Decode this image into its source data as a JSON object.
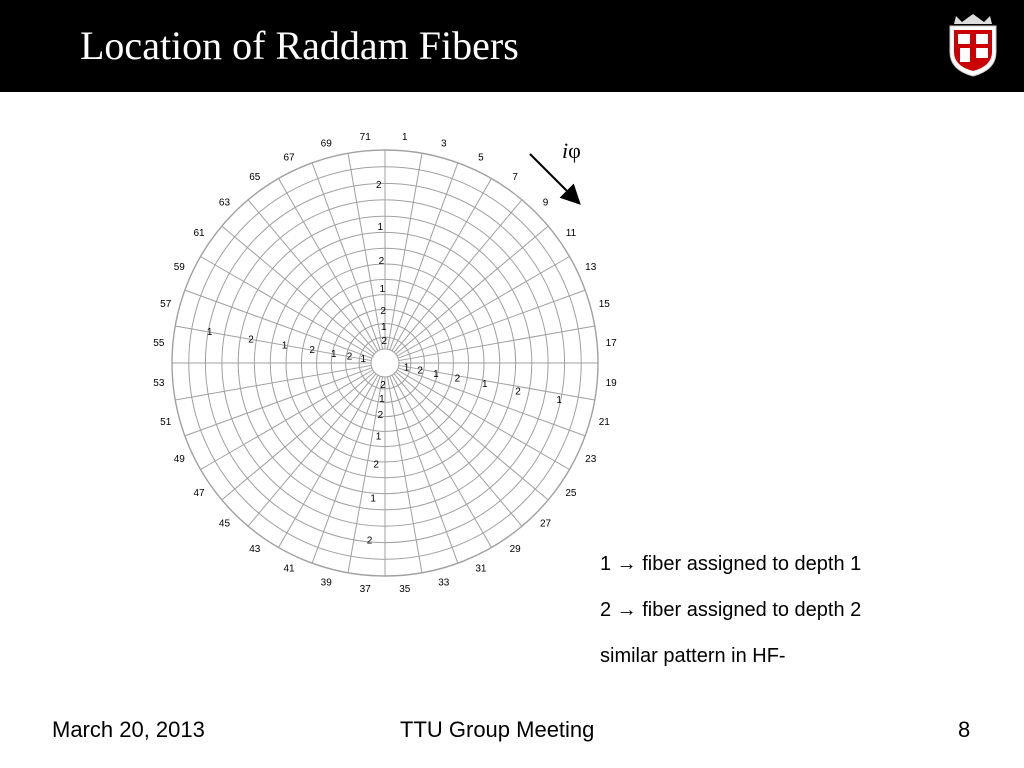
{
  "slide": {
    "title": "Location of Raddam Fibers",
    "phi_label_i": "i",
    "phi_label_phi": "φ",
    "legend": [
      "1 → fiber assigned to depth 1",
      "2 → fiber assigned to depth 2",
      "similar pattern in HF-"
    ]
  },
  "diagram": {
    "sector_labels": [
      "1",
      "3",
      "5",
      "7",
      "9",
      "11",
      "13",
      "15",
      "17",
      "19",
      "21",
      "23",
      "25",
      "27",
      "29",
      "31",
      "33",
      "35",
      "37",
      "39",
      "41",
      "43",
      "45",
      "47",
      "49",
      "51",
      "53",
      "55",
      "57",
      "59",
      "61",
      "63",
      "65",
      "67",
      "69",
      "71"
    ],
    "ring_count": 13,
    "fiber_marks": {
      "up": [
        "2",
        "1",
        "2",
        "1",
        "2",
        "1",
        "2"
      ],
      "left": [
        "1",
        "2",
        "1",
        "2",
        "1",
        "2",
        "1"
      ],
      "right": [
        "1",
        "2",
        "1",
        "2",
        "1",
        "2",
        "1"
      ],
      "down": [
        "2",
        "1",
        "2",
        "1",
        "2",
        "1",
        "2"
      ]
    }
  },
  "footer": {
    "date": "March 20, 2013",
    "event": "TTU Group Meeting",
    "page": "8"
  },
  "colors": {
    "header_bg": "#000000",
    "grid_line": "#a0a0a0",
    "logo_red": "#cc0000"
  }
}
